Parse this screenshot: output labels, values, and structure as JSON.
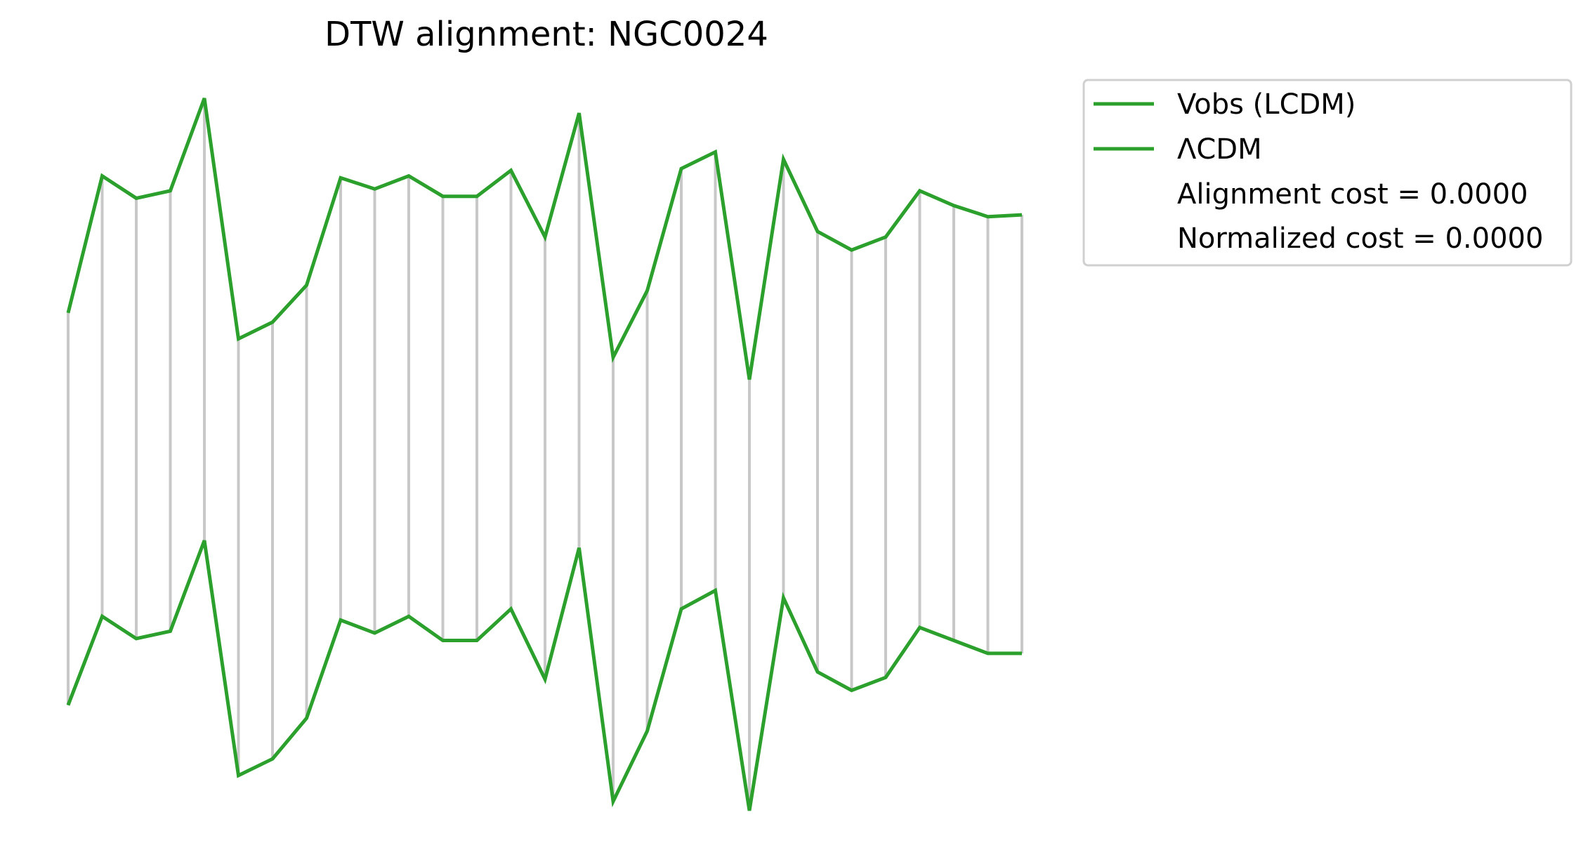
{
  "chart_data": {
    "type": "line",
    "title": "DTW alignment: NGC0024",
    "xlabel": "",
    "ylabel": "",
    "axes_visible": false,
    "grid": false,
    "legend_position": "outside-top-right",
    "colors": {
      "series": "#2ca02c",
      "alignment_lines": "#c8c8c8"
    },
    "x": [
      0,
      1,
      2,
      3,
      4,
      5,
      6,
      7,
      8,
      9,
      10,
      11,
      12,
      13,
      14,
      15,
      16,
      17,
      18,
      19,
      20,
      21,
      22,
      23,
      24,
      25,
      26,
      27,
      28
    ],
    "series": [
      {
        "name": "Vobs (LCDM)",
        "values": [
          3.64,
          4.38,
          4.26,
          4.3,
          4.8,
          3.5,
          3.59,
          3.79,
          4.37,
          4.31,
          4.38,
          4.27,
          4.27,
          4.41,
          4.05,
          4.72,
          3.4,
          3.76,
          4.42,
          4.51,
          3.28,
          4.47,
          4.08,
          3.98,
          4.05,
          4.3,
          4.22,
          4.16,
          4.17
        ]
      },
      {
        "name": "ΛCDM",
        "values": [
          1.52,
          2.0,
          1.88,
          1.92,
          2.41,
          1.14,
          1.23,
          1.45,
          1.98,
          1.91,
          2.0,
          1.87,
          1.87,
          2.04,
          1.66,
          2.37,
          1.0,
          1.38,
          2.04,
          2.14,
          0.95,
          2.1,
          1.7,
          1.6,
          1.67,
          1.94,
          1.87,
          1.8,
          1.8
        ]
      }
    ],
    "alignment_pairs": [
      [
        0,
        0
      ],
      [
        1,
        1
      ],
      [
        2,
        2
      ],
      [
        3,
        3
      ],
      [
        4,
        4
      ],
      [
        5,
        5
      ],
      [
        6,
        6
      ],
      [
        7,
        7
      ],
      [
        8,
        8
      ],
      [
        9,
        9
      ],
      [
        10,
        10
      ],
      [
        11,
        11
      ],
      [
        12,
        12
      ],
      [
        13,
        13
      ],
      [
        14,
        14
      ],
      [
        15,
        15
      ],
      [
        16,
        16
      ],
      [
        17,
        17
      ],
      [
        18,
        18
      ],
      [
        19,
        19
      ],
      [
        20,
        20
      ],
      [
        21,
        21
      ],
      [
        22,
        22
      ],
      [
        23,
        23
      ],
      [
        24,
        24
      ],
      [
        25,
        25
      ],
      [
        26,
        26
      ],
      [
        27,
        27
      ],
      [
        28,
        28
      ]
    ],
    "annotations": [
      "Alignment cost = 0.0000",
      "Normalized cost = 0.0000"
    ]
  }
}
